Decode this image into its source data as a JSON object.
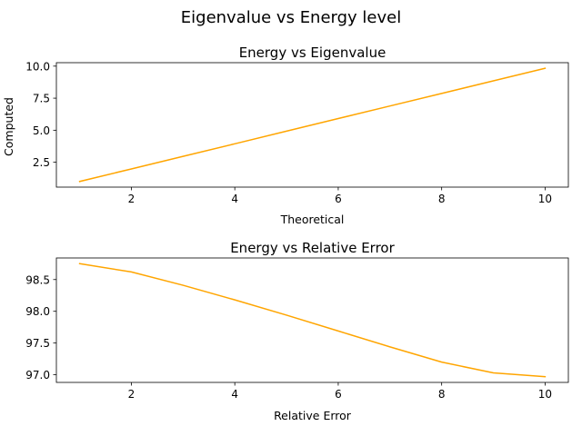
{
  "figure": {
    "title": "Eigenvalue vs Energy level"
  },
  "chart_data": [
    {
      "type": "line",
      "title": "Energy vs Eigenvalue",
      "xlabel": "Theoretical",
      "ylabel": "Computed",
      "x": [
        1,
        2,
        3,
        4,
        5,
        6,
        7,
        8,
        9,
        10
      ],
      "series": [
        {
          "values": [
            1.0,
            1.98,
            2.96,
            3.94,
            4.93,
            5.91,
            6.89,
            7.87,
            8.85,
            9.83
          ]
        }
      ],
      "color": "#ffa500",
      "xlim": [
        0.55,
        10.45
      ],
      "ylim": [
        0.56,
        10.27
      ],
      "xticks": [
        2,
        4,
        6,
        8,
        10
      ],
      "yticks": [
        2.5,
        5.0,
        7.5,
        10.0
      ],
      "xtick_labels": [
        "2",
        "4",
        "6",
        "8",
        "10"
      ],
      "ytick_labels": [
        "2.5",
        "5.0",
        "7.5",
        "10.0"
      ],
      "grid": false
    },
    {
      "type": "line",
      "title": "Energy vs Relative Error",
      "xlabel": "Relative Error",
      "ylabel": "",
      "x": [
        1,
        2,
        3,
        4,
        5,
        6,
        7,
        8,
        9,
        10
      ],
      "series": [
        {
          "values": [
            98.75,
            98.62,
            98.41,
            98.18,
            97.94,
            97.69,
            97.44,
            97.2,
            97.03,
            96.97
          ]
        }
      ],
      "color": "#ffa500",
      "xlim": [
        0.55,
        10.45
      ],
      "ylim": [
        96.88,
        98.84
      ],
      "xticks": [
        2,
        4,
        6,
        8,
        10
      ],
      "yticks": [
        97.0,
        97.5,
        98.0,
        98.5
      ],
      "xtick_labels": [
        "2",
        "4",
        "6",
        "8",
        "10"
      ],
      "ytick_labels": [
        "97.0",
        "97.5",
        "98.0",
        "98.5"
      ],
      "grid": false
    }
  ]
}
